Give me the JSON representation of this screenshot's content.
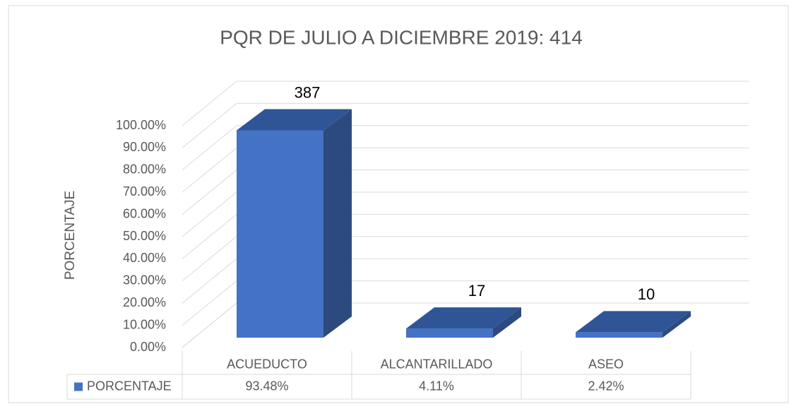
{
  "chart_data": {
    "type": "bar3d",
    "title": "PQR DE JULIO A DICIEMBRE 2019: 414",
    "y_label": "PORCENTAJE",
    "categories": [
      "ACUEDUCTO",
      "ALCANTARILLADO",
      "ASEO"
    ],
    "series": [
      {
        "name": "PORCENTAJE",
        "color": "#4472c4",
        "values": [
          93.48,
          4.11,
          2.42
        ],
        "value_labels": [
          "93.48%",
          "4.11%",
          "2.42%"
        ]
      }
    ],
    "counts": [
      387,
      17,
      10
    ],
    "ylim": [
      0,
      100
    ],
    "yticks": [
      {
        "value": 0,
        "label": "0.00%"
      },
      {
        "value": 10,
        "label": "10.00%"
      },
      {
        "value": 20,
        "label": "20.00%"
      },
      {
        "value": 30,
        "label": "30.00%"
      },
      {
        "value": 40,
        "label": "40.00%"
      },
      {
        "value": 50,
        "label": "50.00%"
      },
      {
        "value": 60,
        "label": "60.00%"
      },
      {
        "value": 70,
        "label": "70.00%"
      },
      {
        "value": 80,
        "label": "80.00%"
      },
      {
        "value": 90,
        "label": "90.00%"
      },
      {
        "value": 100,
        "label": "100.00%"
      }
    ],
    "grid": true,
    "data_table": true
  }
}
